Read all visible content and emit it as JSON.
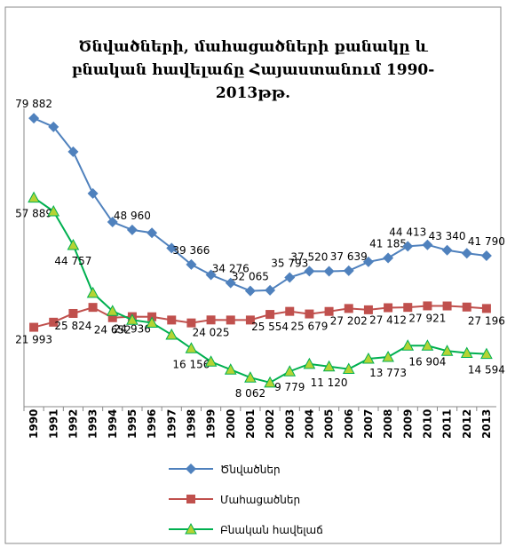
{
  "chart_data": {
    "type": "line",
    "title": "Ծնվածների, մահացածների քանակը և բնական հավելաճը Հայաստանում 1990-2013թթ.",
    "categories": [
      "1990",
      "1991",
      "1992",
      "1993",
      "1994",
      "1995",
      "1996",
      "1997",
      "1998",
      "1999",
      "2000",
      "2001",
      "2002",
      "2003",
      "2004",
      "2005",
      "2006",
      "2007",
      "2008",
      "2009",
      "2010",
      "2011",
      "2012",
      "2013"
    ],
    "ylim": [
      0,
      90000
    ],
    "series": [
      {
        "name": "Ծնվածներ",
        "color": "#4f81bd",
        "values": [
          79882,
          77500,
          70600,
          59041,
          51143,
          48960,
          48134,
          43929,
          39366,
          36502,
          34276,
          32065,
          32229,
          35793,
          37520,
          37499,
          37639,
          40105,
          41185,
          44413,
          44825,
          43340,
          42480,
          41790
        ],
        "value_labels": [
          "79 882",
          null,
          null,
          null,
          null,
          "48 960",
          null,
          null,
          "39 366",
          null,
          "34 276",
          "32 065",
          null,
          "35 793",
          "37 520",
          null,
          "37 639",
          null,
          "41 185",
          "44 413",
          null,
          "43 340",
          null,
          "41 790"
        ]
      },
      {
        "name": "Մահացածներ",
        "color": "#c0504d",
        "values": [
          21993,
          23400,
          25824,
          27500,
          24652,
          24936,
          24900,
          24000,
          23200,
          24025,
          24000,
          24003,
          25554,
          26400,
          25679,
          26379,
          27202,
          26830,
          27412,
          27500,
          27921,
          27900,
          27600,
          27196
        ],
        "value_labels": [
          "21 993",
          null,
          "25 824",
          null,
          "24 652",
          "24 936",
          null,
          null,
          null,
          "24 025",
          null,
          null,
          "25 554",
          null,
          "25 679",
          null,
          "27 202",
          null,
          "27 412",
          null,
          "27 921",
          null,
          null,
          "27 196"
        ]
      },
      {
        "name": "Բնական հավելաճ",
        "color": "#00b050",
        "values": [
          57889,
          54100,
          44757,
          31500,
          26491,
          24024,
          23234,
          19929,
          16156,
          12477,
          10276,
          8062,
          6675,
          9779,
          11841,
          11120,
          10437,
          13275,
          13773,
          16913,
          16904,
          15440,
          14880,
          14594
        ],
        "value_labels": [
          "57 889",
          null,
          "44 757",
          null,
          null,
          null,
          null,
          null,
          "16 156",
          null,
          null,
          "8 062",
          null,
          "9 779",
          null,
          "11 120",
          null,
          null,
          "13 773",
          null,
          "16 904",
          null,
          null,
          "14 594"
        ]
      }
    ]
  }
}
